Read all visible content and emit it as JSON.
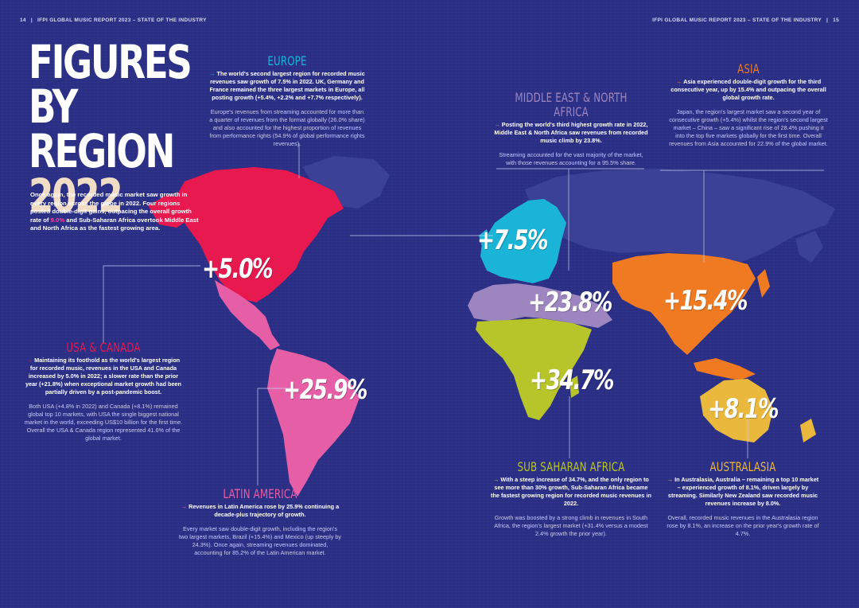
{
  "header": {
    "left_page": "14",
    "left_title": "IFPI GLOBAL MUSIC REPORT 2023 – STATE OF THE INDUSTRY",
    "right_title": "IFPI GLOBAL MUSIC REPORT 2023 – STATE OF THE INDUSTRY",
    "right_page": "15",
    "separator": "|"
  },
  "title": {
    "line1": "FIGURES",
    "line2": "BY REGION",
    "line3": "2022"
  },
  "intro": {
    "text_a": "Once again, the recorded music market saw growth in every region across the globe in 2022. Four regions posted double-digit gains, outpacing the overall growth rate of ",
    "highlight": "9.0%",
    "text_b": " and Sub-Saharan Africa overtook Middle East and North Africa as the fastest growing area."
  },
  "arrow": "→",
  "regions": {
    "usa": {
      "title": "USA & CANADA",
      "color": "#e8194e",
      "growth": "+5.0%",
      "lead": "Maintaining its foothold as the world's largest region for recorded music, revenues in the USA and Canada increased by 5.0% in 2022; a slower rate than the prior year (+21.8%) when exceptional market growth had been partially driven by a post-pandemic boost.",
      "body": "Both USA (+4.8% in 2022) and Canada (+8.1%) remained global top 10 markets, with USA the single biggest national market in the world, exceeding US$10 billion for the first time. Overall the USA & Canada region represented 41.6% of the global market."
    },
    "europe": {
      "title": "EUROPE",
      "color": "#1ab5d6",
      "growth": "+7.5%",
      "lead": "The world's second largest region for recorded music revenues saw growth of 7.5% in 2022. UK, Germany and France remained the three largest markets in Europe, all posting growth (+5.4%, +2.2% and +7.7% respectively).",
      "body": "Europe's revenues from streaming accounted for more than a quarter of revenues from the format globally (26.0% share) and also accounted for the highest proportion of revenues from performance rights (54.9% of global performance rights revenues)."
    },
    "mena": {
      "title": "MIDDLE EAST & NORTH AFRICA",
      "color": "#9d86bf",
      "growth": "+23.8%",
      "lead": "Posting the world's third highest growth rate in 2022, Middle East & North Africa saw revenues from recorded music climb by 23.8%.",
      "body": "Streaming accounted for the vast majority of the market, with those revenues accounting for a 95.5% share."
    },
    "asia": {
      "title": "ASIA",
      "color": "#f07a22",
      "growth": "+15.4%",
      "lead": "Asia experienced double-digit growth for the third consecutive year, up by 15.4% and outpacing the overall global growth rate.",
      "body": "Japan, the region's largest market saw a second year of consecutive growth (+5.4%) whilst the region's second largest market – China – saw a significant rise of 28.4% pushing it into the top five markets globally for the first time. Overall revenues from Asia accounted for 22.9% of the global market."
    },
    "latam": {
      "title": "LATIN AMERICA",
      "color": "#e65fa6",
      "growth": "+25.9%",
      "lead": "Revenues in Latin America rose by 25.9% continuing a decade-plus trajectory of growth.",
      "body": "Every market saw double-digit growth, including the region's two largest markets, Brazil (+15.4%) and Mexico (up steeply by 24.3%). Once again, streaming revenues dominated, accounting for 85.2% of the Latin American market."
    },
    "ssa": {
      "title": "SUB SAHARAN AFRICA",
      "color": "#b8c52a",
      "growth": "+34.7%",
      "lead": "With a steep increase of 34.7%, and the only region to see more than 30% growth, Sub-Saharan Africa became the fastest growing region for recorded music revenues in 2022.",
      "body": "Growth was boosted by a strong climb in revenues in South Africa, the region's largest market (+31.4% versus a modest 2.4% growth the prior year)."
    },
    "aus": {
      "title": "AUSTRALASIA",
      "color": "#e9b83c",
      "growth": "+8.1%",
      "lead": "In Australasia, Australia – remaining a top 10 market – experienced growth of 8.1%, driven largely by streaming. Similarly New Zealand saw recorded music revenues increase by 8.0%.",
      "body": "Overall, recorded music revenues in the Australasia region rose by 8.1%, an increase on the prior year's growth rate of 4.7%."
    }
  },
  "colors": {
    "background": "#2b2f86",
    "unlit_land": "#3b4196"
  }
}
